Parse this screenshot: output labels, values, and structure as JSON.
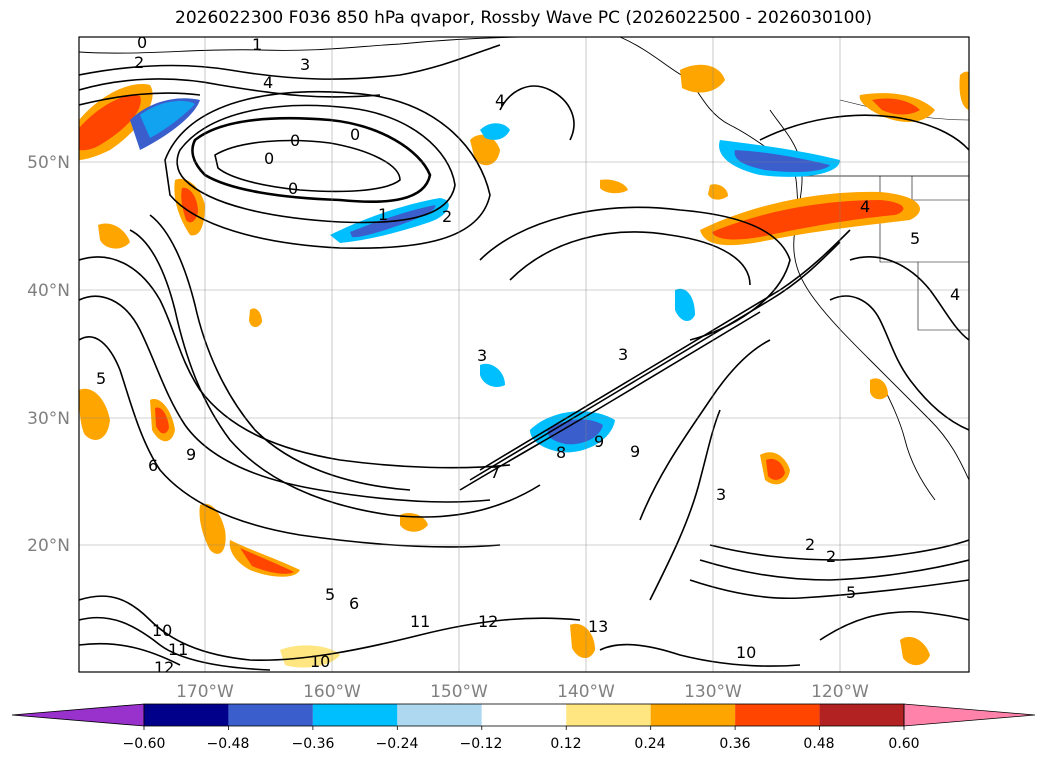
{
  "title": "2026022300 F036 850 hPa qvapor, Rossby Wave PC (2026022500 - 2026030100)",
  "chart_data": {
    "type": "contour-map",
    "projection": "Mercator",
    "lon_range": [
      -180,
      -110
    ],
    "lat_range": [
      10,
      60
    ],
    "grid": true,
    "y_tick_labels": [
      "50°N",
      "40°N",
      "30°N",
      "20°N"
    ],
    "y_tick_values": [
      50,
      40,
      30,
      20
    ],
    "x_tick_labels": [
      "170°W",
      "160°W",
      "150°W",
      "140°W",
      "130°W",
      "120°W"
    ],
    "x_tick_values": [
      -170,
      -160,
      -150,
      -140,
      -130,
      -120
    ],
    "contour_field": "850 hPa qvapor",
    "contour_labels": [
      "0",
      "1",
      "2",
      "3",
      "4",
      "0",
      "0",
      "0",
      "0",
      "1",
      "2",
      "3",
      "4",
      "5",
      "6",
      "7",
      "8",
      "9",
      "9",
      "9",
      "10",
      "11",
      "12",
      "13",
      "10",
      "11",
      "12",
      "10",
      "5",
      "6",
      "3",
      "2",
      "5",
      "4",
      "4",
      "5",
      "3",
      "2"
    ],
    "shaded_field": "Rossby Wave PC",
    "colorbar": {
      "extend": "both",
      "tick_labels": [
        "−0.60",
        "−0.48",
        "−0.36",
        "−0.24",
        "−0.12",
        "0.12",
        "0.24",
        "0.36",
        "0.48",
        "0.60"
      ],
      "levels": [
        -0.6,
        -0.48,
        -0.36,
        -0.24,
        -0.12,
        0.12,
        0.24,
        0.36,
        0.48,
        0.6
      ],
      "colors": [
        "#9932CC",
        "#00008B",
        "#3A5FCD",
        "#00BFFF",
        "#ADD8F0",
        "#FFFFFF",
        "#FFE680",
        "#FFA500",
        "#FF4500",
        "#B22222",
        "#FF82AB"
      ]
    }
  }
}
